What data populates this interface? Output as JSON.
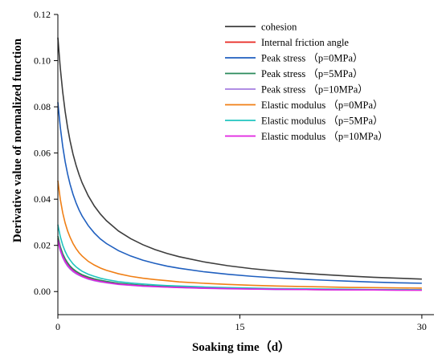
{
  "chart_data": {
    "type": "line",
    "title": "",
    "xlabel": "Soaking time（d）",
    "ylabel": "Derivative value of normalized function",
    "xlim": [
      0,
      31
    ],
    "ylim": [
      -0.01,
      0.12
    ],
    "x_ticks": [
      0,
      15,
      30
    ],
    "y_ticks": [
      0.0,
      0.02,
      0.04,
      0.06,
      0.08,
      0.1,
      0.12
    ],
    "y_tick_labels": [
      "0.00",
      "0.02",
      "0.04",
      "0.06",
      "0.08",
      "0.10",
      "0.12"
    ],
    "grid": false,
    "legend_position": "top-right",
    "x": [
      0,
      0.2,
      0.4,
      0.6,
      0.8,
      1,
      1.25,
      1.5,
      1.75,
      2,
      2.5,
      3,
      3.5,
      4,
      5,
      6,
      7,
      8,
      9,
      10,
      12,
      14,
      16,
      18,
      20,
      22,
      24,
      26,
      28,
      30
    ],
    "series": [
      {
        "name": "cohesion",
        "color": "#3d3d3d",
        "values": [
          0.11,
          0.0968,
          0.0864,
          0.078,
          0.0711,
          0.0654,
          0.0595,
          0.0547,
          0.0506,
          0.0471,
          0.0415,
          0.0371,
          0.0336,
          0.0307,
          0.0262,
          0.0229,
          0.0203,
          0.0182,
          0.0165,
          0.0151,
          0.0129,
          0.0112,
          0.0099,
          0.0089,
          0.008,
          0.0073,
          0.0067,
          0.0062,
          0.0058,
          0.0054
        ]
      },
      {
        "name": "Internal friction angle",
        "color": "#e8251f",
        "values": [
          0.023,
          0.0186,
          0.0156,
          0.0135,
          0.0118,
          0.0105,
          0.0093,
          0.0083,
          0.0076,
          0.0069,
          0.0059,
          0.0052,
          0.0046,
          0.0041,
          0.0034,
          0.0029,
          0.0026,
          0.0023,
          0.002,
          0.0018,
          0.0015,
          0.0013,
          0.0012,
          0.001,
          0.0009,
          0.0008,
          0.0008,
          0.0007,
          0.0007,
          0.0006
        ]
      },
      {
        "name": "Peak stress （p=0MPa）",
        "color": "#1f5fbf",
        "values": [
          0.082,
          0.0712,
          0.0629,
          0.0563,
          0.051,
          0.0466,
          0.0421,
          0.0384,
          0.0353,
          0.0327,
          0.0286,
          0.0254,
          0.0228,
          0.0208,
          0.0177,
          0.0154,
          0.0136,
          0.0122,
          0.011,
          0.0101,
          0.0086,
          0.0075,
          0.0066,
          0.0059,
          0.0054,
          0.0049,
          0.0045,
          0.0041,
          0.0038,
          0.0036
        ]
      },
      {
        "name": "Peak stress （p=5MPa）",
        "color": "#2a8a5a",
        "values": [
          0.024,
          0.0195,
          0.0164,
          0.0142,
          0.0125,
          0.0111,
          0.0098,
          0.0088,
          0.008,
          0.0073,
          0.0063,
          0.0055,
          0.0049,
          0.0044,
          0.0036,
          0.0031,
          0.0027,
          0.0024,
          0.0022,
          0.002,
          0.0016,
          0.0014,
          0.0012,
          0.0011,
          0.001,
          0.0009,
          0.0008,
          0.0008,
          0.0007,
          0.0007
        ]
      },
      {
        "name": "Peak stress （p=10MPa）",
        "color": "#a57ee0",
        "values": [
          0.022,
          0.0176,
          0.0147,
          0.0126,
          0.011,
          0.0098,
          0.0086,
          0.0077,
          0.007,
          0.0064,
          0.0054,
          0.0047,
          0.0042,
          0.0038,
          0.0031,
          0.0027,
          0.0023,
          0.0021,
          0.0019,
          0.0017,
          0.0014,
          0.0012,
          0.0011,
          0.0009,
          0.0009,
          0.0008,
          0.0007,
          0.0007,
          0.0006,
          0.0006
        ]
      },
      {
        "name": "Elastic modulus （p=0MPa）",
        "color": "#f07f15",
        "values": [
          0.048,
          0.04,
          0.0341,
          0.0297,
          0.0263,
          0.0236,
          0.0208,
          0.0186,
          0.0168,
          0.0154,
          0.0131,
          0.0115,
          0.0102,
          0.0092,
          0.0077,
          0.0066,
          0.0058,
          0.0052,
          0.0047,
          0.0042,
          0.0036,
          0.0031,
          0.0027,
          0.0024,
          0.0022,
          0.002,
          0.0018,
          0.0017,
          0.0016,
          0.0015
        ]
      },
      {
        "name": "Elastic modulus （p=5MPa）",
        "color": "#20c4bf",
        "values": [
          0.029,
          0.0238,
          0.0201,
          0.0174,
          0.0153,
          0.0137,
          0.012,
          0.0107,
          0.0097,
          0.0088,
          0.0075,
          0.0066,
          0.0058,
          0.0052,
          0.0043,
          0.0037,
          0.0033,
          0.0029,
          0.0026,
          0.0024,
          0.002,
          0.0017,
          0.0015,
          0.0013,
          0.0012,
          0.0011,
          0.001,
          0.0009,
          0.0009,
          0.0008
        ]
      },
      {
        "name": "Elastic modulus （p=10MPa）",
        "color": "#e022e0",
        "values": [
          0.0225,
          0.0182,
          0.0152,
          0.0131,
          0.0115,
          0.0102,
          0.009,
          0.0081,
          0.0073,
          0.0066,
          0.0056,
          0.0049,
          0.0044,
          0.0039,
          0.0032,
          0.0028,
          0.0024,
          0.0022,
          0.0019,
          0.0018,
          0.0015,
          0.0013,
          0.0011,
          0.001,
          0.0009,
          0.0008,
          0.0007,
          0.0007,
          0.0006,
          0.0006
        ]
      }
    ]
  }
}
